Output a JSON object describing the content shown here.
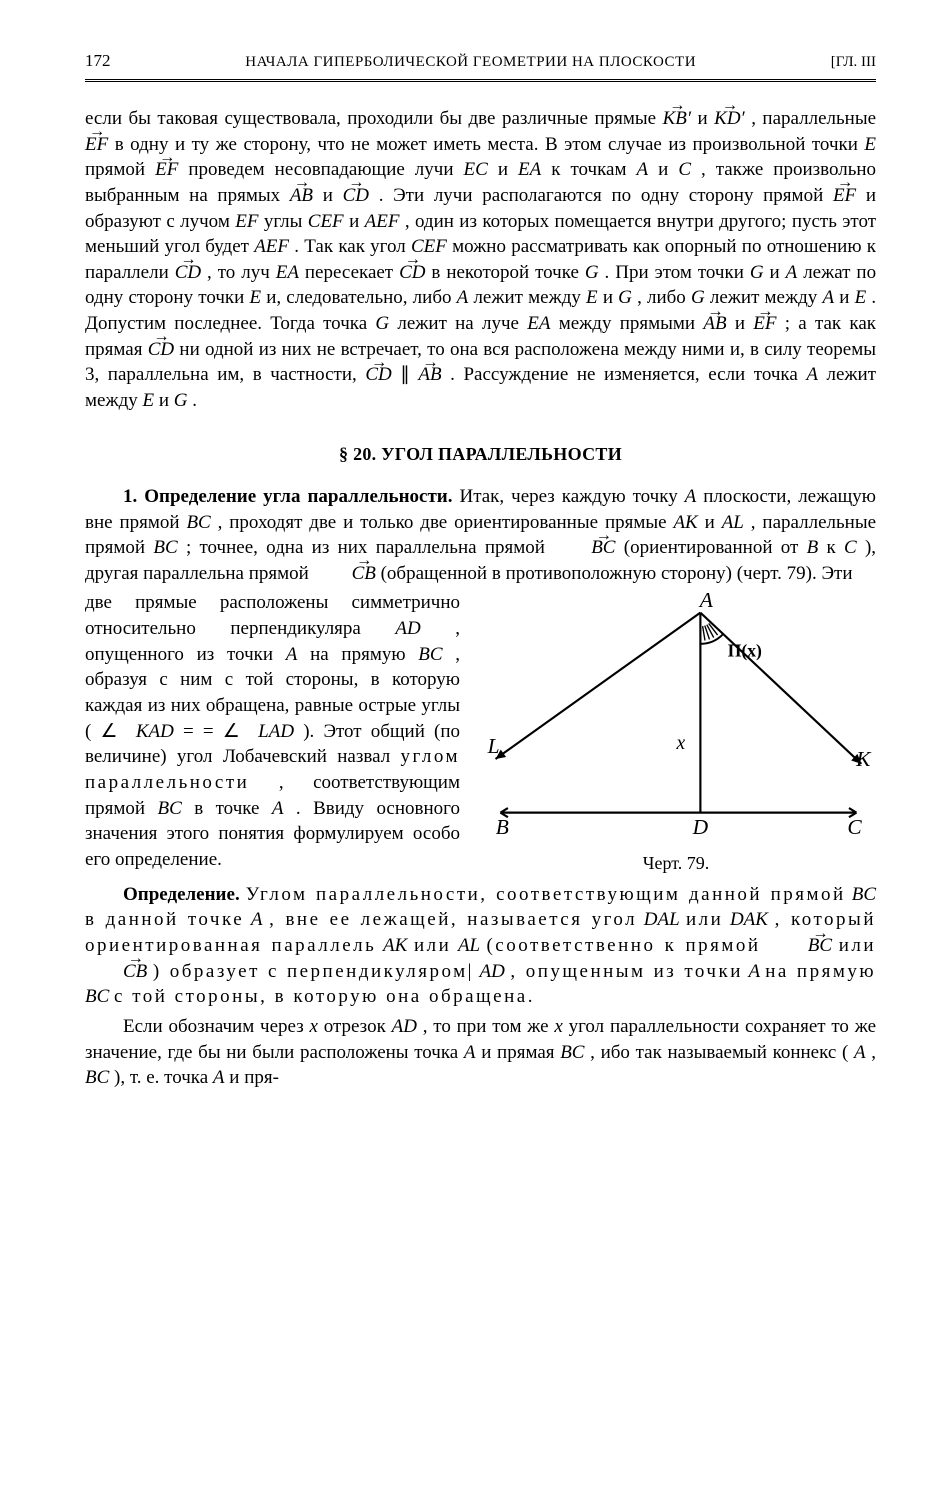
{
  "header": {
    "page_number": "172",
    "title": "НАЧАЛА ГИПЕРБОЛИЧЕСКОЙ ГЕОМЕТРИИ НА ПЛОСКОСТИ",
    "chapter": "[ГЛ. III"
  },
  "paragraphs": {
    "p1a": "если бы таковая существовала, проходили бы две различные прямые",
    "kb": "KB′",
    "p1b": " и ",
    "kd": "KD′",
    "p1c": ", параллельные ",
    "ef1": "EF",
    "p1d": " в одну и ту же сторону, что не может иметь места. В этом случае из произвольной точки ",
    "e1": "E",
    "p1e": " прямой ",
    "ef2": "EF",
    "p1f": " проведем несовпадающие лучи ",
    "ec": "EC",
    "p1g": " и ",
    "ea": "EA",
    "p1h": " к точкам ",
    "a1": "A",
    "p1i": " и ",
    "c1": "C",
    "p1j": ", также произвольно выбранным на прямых ",
    "ab1": "AB",
    "p1k": " и ",
    "cd1": "CD",
    "p1l": ". Эти лучи располагаются по одну сторону прямой ",
    "ef3": "EF",
    "p1m": " и образуют с лучом ",
    "ef4": "EF",
    "p1n": " углы ",
    "cef": "CEF",
    "p1o": " и ",
    "aef": "AEF",
    "p1p": ", один из которых помещается внутри другого; пусть этот меньший угол будет ",
    "aef2": "AEF",
    "p1q": ". Так как угол ",
    "cef2": "CEF",
    "p1r": " можно рассматривать как опорный по отношению к параллели ",
    "cd2": "CD",
    "p1s": ", то луч ",
    "ea2": "EA",
    "p1t": " пересекает ",
    "cd3": "CD",
    "p1u": " в некоторой точке ",
    "g1": "G",
    "p1v": ". При этом точки ",
    "g2": "G",
    "p1w": " и ",
    "a2": "A",
    "p1x": " лежат по одну сторону точки ",
    "e2": "E",
    "p1y": " и, следовательно, либо ",
    "a3": "A",
    "p1z": " лежит между ",
    "e3": "E",
    "p1aa": " и ",
    "g3": "G",
    "p1ab": ", либо ",
    "g4": "G",
    "p1ac": " лежит между ",
    "a4": "A",
    "p1ad": " и ",
    "e4": "E",
    "p1ae": ". Допустим последнее. Тогда точка ",
    "g5": "G",
    "p1af": " лежит на луче ",
    "ea3": "EA",
    "p1ag": " между прямыми ",
    "ab2": "AB",
    "p1ah": " и ",
    "ef5": "EF",
    "p1ai": "; а так как прямая ",
    "cd4": "CD",
    "p1aj": " ни одной из них не встречает, то она вся расположена между ними и, в силу теоремы 3, параллельна им, в частности, ",
    "cd5": "CD",
    "p1ak": "∥",
    "ab3": "AB",
    "p1al": ". Рассуждение не изменяется, если точка ",
    "a5": "A",
    "p1am": " лежит между ",
    "e5": "E",
    "p1an": " и ",
    "g6": "G",
    "p1ao": "."
  },
  "section": "§ 20. УГОЛ ПАРАЛЛЕЛЬНОСТИ",
  "sub1": {
    "lead": "1. Определение угла параллельности.",
    "t1": " Итак, через каждую точку ",
    "a": "A",
    "t2": " плоскости, лежащую вне прямой ",
    "bc1": "BC",
    "t3": ", проходят две и только две ориентированные прямые ",
    "ak": "AK",
    "t4": " и ",
    "al": "AL",
    "t5": ", параллельные прямой ",
    "bc2": "BC",
    "t6": "; точнее, одна из них параллельна прямой ",
    "bc3": "BC",
    "t7": " (ориентированной от ",
    "b": "B",
    "t8": " к ",
    "c": "C",
    "t9": "), другая параллельна прямой ",
    "cb": "CB",
    "t10": " (обращенной в противоположную сторону) (черт. 79). Эти"
  },
  "column_text": {
    "t1": "две прямые расположены симметрично относительно перпендикуляра ",
    "ad": "AD",
    "t2": ", опущенного из точки ",
    "a": "A",
    "t3": " на прямую ",
    "bc": "BC",
    "t4": ", образуя с ним с той стороны, в которую каждая из них обращена, равные острые углы ( ∠ ",
    "kad": "KAD",
    "t5": " = = ∠ ",
    "lad": "LAD",
    "t6": "). Этот общий (по величине) угол Лобачевский назвал ",
    "spaced1": "углом параллельности",
    "t7": ", соответствующим прямой ",
    "bc2": "BC",
    "t8": " в точке ",
    "a2": "A",
    "t9": ". Ввиду основного значения этого понятия формулируем особо его определение."
  },
  "figure": {
    "caption": "Черт. 79.",
    "labels": {
      "A": "A",
      "B": "B",
      "C": "C",
      "D": "D",
      "K": "K",
      "L": "L",
      "x": "x",
      "pi": "Π(x)"
    },
    "geometry": {
      "B": [
        25,
        225
      ],
      "C": [
        390,
        225
      ],
      "D": [
        230,
        225
      ],
      "A": [
        230,
        20
      ],
      "L": [
        20,
        170
      ],
      "K": [
        395,
        175
      ],
      "x_label": [
        210,
        160
      ],
      "pi_label": [
        258,
        65
      ],
      "arc_r": 32
    },
    "style": {
      "stroke": "#000000",
      "stroke_width": 2.2,
      "arrow_size": 9
    }
  },
  "definition": {
    "lead": "Определение.",
    "t1": " ",
    "sp1": "Углом параллельности, соответствующим данной прямой",
    "bc": " BC ",
    "sp2": "в данной точке",
    "a": " A",
    "sp3": ", вне ее лежащей, называется угол",
    "dal": " DAL ",
    "sp4": "или",
    "dak": " DAK",
    "sp5": ", который ориентированная параллель",
    "ak": " AK ",
    "sp6": "или",
    "al": " AL ",
    "sp7": "(соответственно к прямой ",
    "bc2": "BC",
    "sp8": " или ",
    "cb": "CB",
    "sp9": ") образует с перпендикуляром|",
    "ad": " AD",
    "sp10": ", опущенным из точки",
    "a2": " A ",
    "sp11": "на прямую",
    "bc3": " BC ",
    "sp12": "с той стороны, в которую она обращена."
  },
  "final": {
    "t1": "Если обозначим через ",
    "x": "x",
    "t2": " отрезок ",
    "ad": "AD",
    "t3": ", то при том же ",
    "x2": "x",
    "t4": " угол параллельности сохраняет то же значение, где бы ни были расположены точка ",
    "a": "A",
    "t5": " и прямая ",
    "bc": "BC",
    "t6": ", ибо так называемый коннекс (",
    "a2": "A",
    "t7": ", ",
    "bc2": "BC",
    "t8": "), т. е. точка ",
    "a3": "A",
    "t9": " и пря-"
  }
}
